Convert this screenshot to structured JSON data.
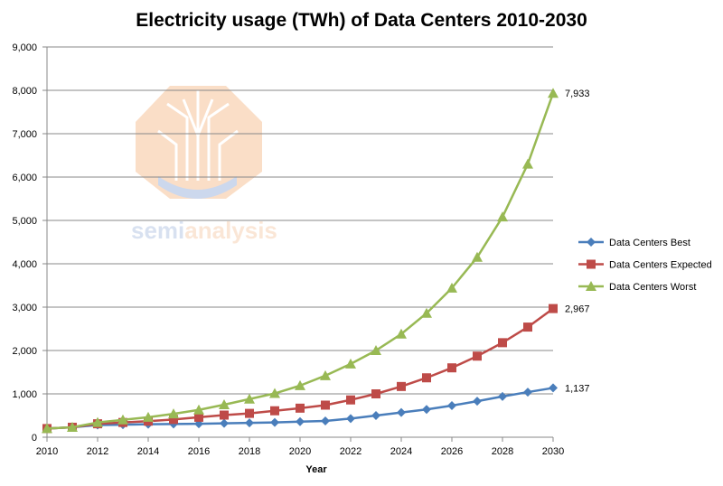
{
  "chart_data": {
    "type": "line",
    "title": "Electricity usage (TWh) of Data Centers 2010-2030",
    "xlabel": "Year",
    "ylabel": "",
    "xlim": [
      2010,
      2030
    ],
    "ylim": [
      0,
      9000
    ],
    "x_ticks": [
      "2010",
      "2012",
      "2014",
      "2016",
      "2018",
      "2020",
      "2022",
      "2024",
      "2026",
      "2028",
      "2030"
    ],
    "y_ticks": [
      "0",
      "1,000",
      "2,000",
      "3,000",
      "4,000",
      "5,000",
      "6,000",
      "7,000",
      "8,000",
      "9,000"
    ],
    "grid": "horizontal",
    "legend_position": "right",
    "x": [
      2010,
      2011,
      2012,
      2013,
      2014,
      2015,
      2016,
      2017,
      2018,
      2019,
      2020,
      2021,
      2022,
      2023,
      2024,
      2025,
      2026,
      2027,
      2028,
      2029,
      2030
    ],
    "series": [
      {
        "name": "Data Centers Best",
        "color": "#4a7ebb",
        "marker": "diamond",
        "values": [
          200,
          230,
          280,
          290,
          300,
          305,
          310,
          320,
          330,
          340,
          360,
          375,
          430,
          500,
          570,
          640,
          730,
          830,
          940,
          1040,
          1137
        ],
        "end_label": "1,137"
      },
      {
        "name": "Data Centers Expected",
        "color": "#be4b48",
        "marker": "square",
        "values": [
          200,
          230,
          310,
          340,
          370,
          410,
          460,
          510,
          550,
          610,
          670,
          740,
          860,
          1000,
          1170,
          1370,
          1600,
          1870,
          2180,
          2540,
          2967
        ],
        "end_label": "2,967"
      },
      {
        "name": "Data Centers Worst",
        "color": "#98b954",
        "marker": "triangle",
        "values": [
          200,
          230,
          340,
          400,
          460,
          540,
          630,
          750,
          880,
          1010,
          1190,
          1420,
          1690,
          2000,
          2380,
          2860,
          3440,
          4150,
          5080,
          6300,
          7933
        ],
        "end_label": "7,933"
      }
    ]
  },
  "watermark": {
    "text_a": "semi",
    "text_b": "analysis",
    "color_a": "#a9bde0",
    "color_b": "#f6c9a6"
  }
}
